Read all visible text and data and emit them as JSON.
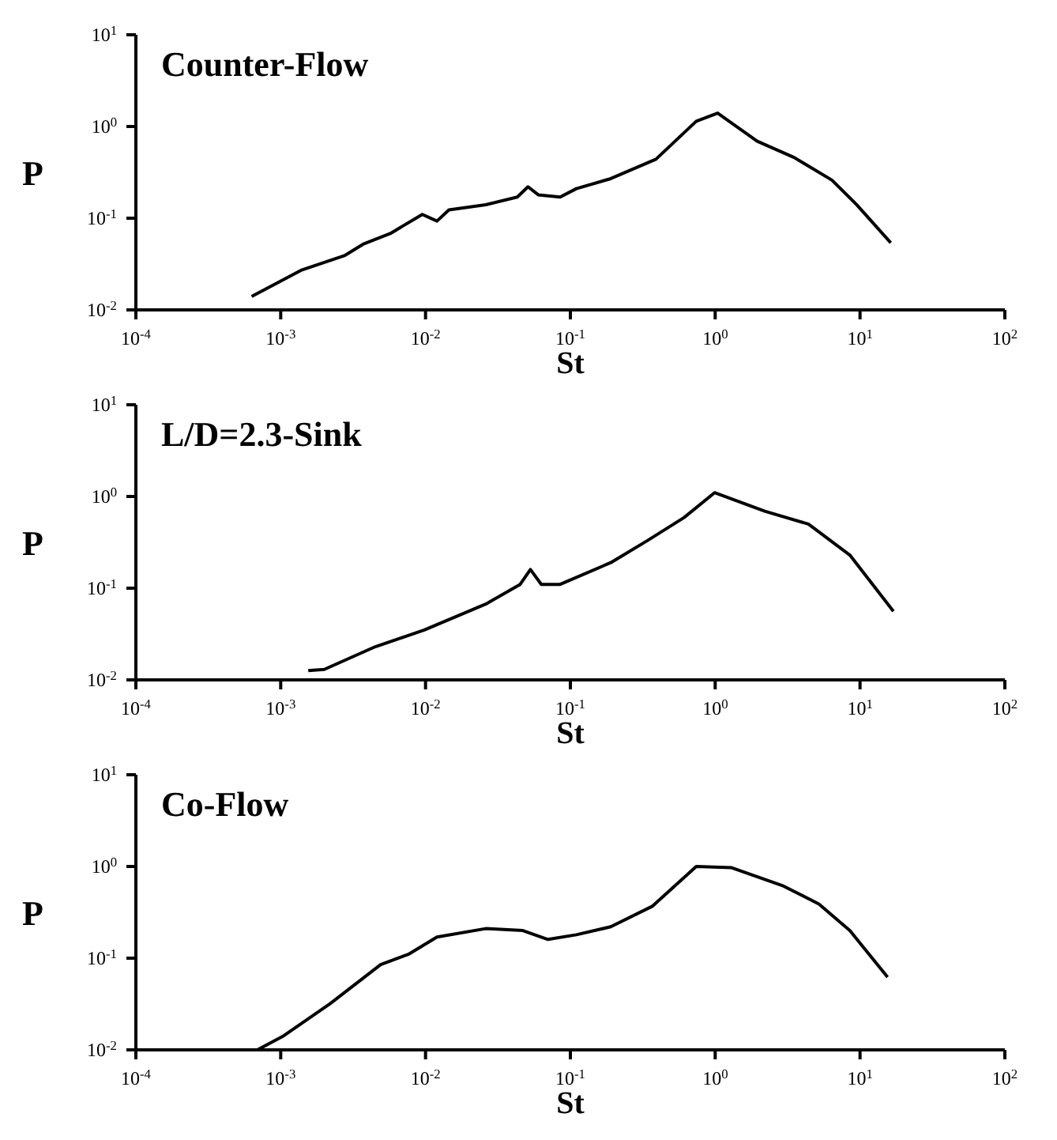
{
  "chart_data": [
    {
      "type": "line",
      "title": "Counter-Flow",
      "xlabel": "St",
      "ylabel": "P",
      "log": "xy",
      "color": "#000000",
      "marker": "none",
      "line_style": "solid",
      "grid": false,
      "legend": false,
      "x": [
        0.00063,
        0.00138,
        0.00275,
        0.0037,
        0.0057,
        0.0095,
        0.012,
        0.0145,
        0.026,
        0.043,
        0.051,
        0.06,
        0.085,
        0.11,
        0.19,
        0.39,
        0.74,
        1.04,
        1.95,
        3.5,
        6.4,
        9.5,
        16.3
      ],
      "values": [
        0.014,
        0.027,
        0.039,
        0.052,
        0.068,
        0.11,
        0.093,
        0.123,
        0.14,
        0.17,
        0.22,
        0.18,
        0.17,
        0.21,
        0.27,
        0.44,
        1.14,
        1.4,
        0.69,
        0.46,
        0.26,
        0.14,
        0.054
      ],
      "xlim": [
        0.0001,
        100
      ],
      "xticks": [
        {
          "value": 0.0001,
          "label": "10$^{-4}$"
        },
        {
          "value": 0.001,
          "label": "10$^{-3}$"
        },
        {
          "value": 0.01,
          "label": "10$^{-2}$"
        },
        {
          "value": 0.1,
          "label": "10$^{-1}$"
        },
        {
          "value": 1,
          "label": "10$^{0}$"
        },
        {
          "value": 10,
          "label": "10$^{1}$"
        },
        {
          "value": 100,
          "label": "10$^{2}$"
        }
      ],
      "ylim": [
        0.01,
        10
      ],
      "yticks": [
        {
          "value": 0.01,
          "label": "10$^{-2}$"
        },
        {
          "value": 0.1,
          "label": "10$^{-1}$"
        },
        {
          "value": 1,
          "label": "10$^{0}$"
        },
        {
          "value": 10,
          "label": "10$^{1}$"
        }
      ]
    },
    {
      "type": "line",
      "title": "L/D=2.3-Sink",
      "xlabel": "St",
      "ylabel": "P",
      "log": "xy",
      "color": "#000000",
      "marker": "none",
      "line_style": "solid",
      "grid": false,
      "legend": false,
      "x": [
        0.00155,
        0.002,
        0.0045,
        0.0098,
        0.026,
        0.045,
        0.053,
        0.063,
        0.085,
        0.19,
        0.34,
        0.61,
        0.99,
        2.2,
        4.4,
        8.5,
        17
      ],
      "values": [
        0.0126,
        0.013,
        0.023,
        0.035,
        0.067,
        0.11,
        0.16,
        0.11,
        0.11,
        0.19,
        0.33,
        0.59,
        1.1,
        0.69,
        0.5,
        0.23,
        0.056
      ],
      "xlim": [
        0.0001,
        100
      ],
      "xticks": [
        {
          "value": 0.0001,
          "label": "10$^{-4}$"
        },
        {
          "value": 0.001,
          "label": "10$^{-3}$"
        },
        {
          "value": 0.01,
          "label": "10$^{-2}$"
        },
        {
          "value": 0.1,
          "label": "10$^{-1}$"
        },
        {
          "value": 1,
          "label": "10$^{0}$"
        },
        {
          "value": 10,
          "label": "10$^{1}$"
        },
        {
          "value": 100,
          "label": "10$^{2}$"
        }
      ],
      "ylim": [
        0.01,
        10
      ],
      "yticks": [
        {
          "value": 0.01,
          "label": "10$^{-2}$"
        },
        {
          "value": 0.1,
          "label": "10$^{-1}$"
        },
        {
          "value": 1,
          "label": "10$^{0}$"
        },
        {
          "value": 10,
          "label": "10$^{1}$"
        }
      ]
    },
    {
      "type": "line",
      "title": "Co-Flow",
      "xlabel": "St",
      "ylabel": "P",
      "log": "xy",
      "color": "#000000",
      "marker": "none",
      "line_style": "solid",
      "grid": false,
      "legend": false,
      "x": [
        0.00069,
        0.00103,
        0.0022,
        0.0049,
        0.0076,
        0.012,
        0.026,
        0.047,
        0.07,
        0.11,
        0.19,
        0.37,
        0.74,
        1.3,
        2.9,
        5.2,
        8.5,
        15.5
      ],
      "values": [
        0.01,
        0.014,
        0.032,
        0.085,
        0.11,
        0.17,
        0.21,
        0.2,
        0.16,
        0.18,
        0.22,
        0.37,
        1.0,
        0.97,
        0.62,
        0.39,
        0.2,
        0.062
      ],
      "xlim": [
        0.0001,
        100
      ],
      "xticks": [
        {
          "value": 0.0001,
          "label": "10$^{-4}$"
        },
        {
          "value": 0.001,
          "label": "10$^{-3}$"
        },
        {
          "value": 0.01,
          "label": "10$^{-2}$"
        },
        {
          "value": 0.1,
          "label": "10$^{-1}$"
        },
        {
          "value": 1,
          "label": "10$^{0}$"
        },
        {
          "value": 10,
          "label": "10$^{1}$"
        },
        {
          "value": 100,
          "label": "10$^{2}$"
        }
      ],
      "ylim": [
        0.01,
        10
      ],
      "yticks": [
        {
          "value": 0.01,
          "label": "10$^{-2}$"
        },
        {
          "value": 0.1,
          "label": "10$^{-1}$"
        },
        {
          "value": 1,
          "label": "10$^{0}$"
        },
        {
          "value": 10,
          "label": "10$^{1}$"
        }
      ]
    }
  ]
}
